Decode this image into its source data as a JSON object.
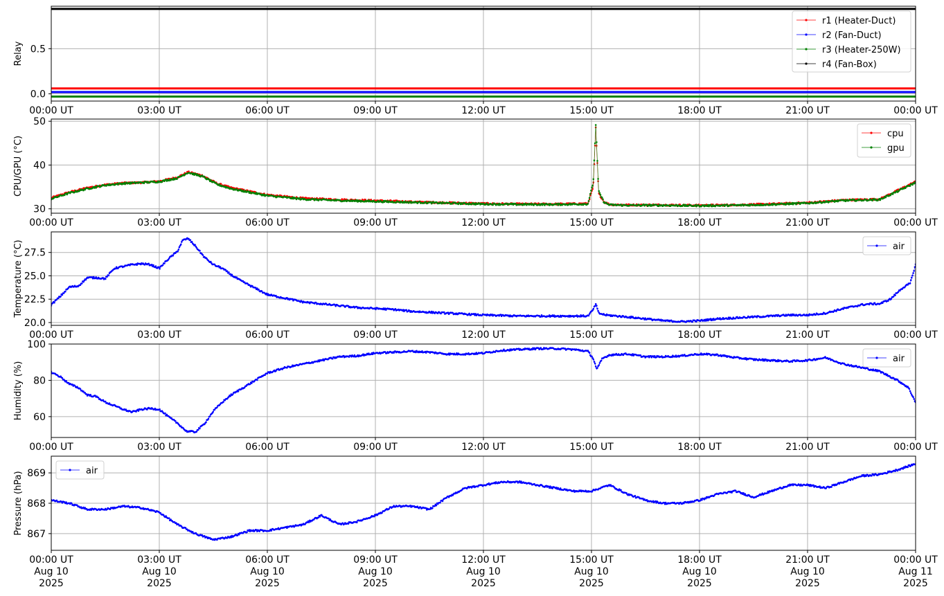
{
  "chart_data": [
    {
      "type": "line",
      "ylabel": "Relay",
      "xlabel": "",
      "xlim": [
        "00:00 UT",
        "00:00 UT"
      ],
      "x_ticks": [
        "00:00 UT",
        "03:00 UT",
        "06:00 UT",
        "09:00 UT",
        "12:00 UT",
        "15:00 UT",
        "18:00 UT",
        "21:00 UT",
        "00:00 UT"
      ],
      "ylim": [
        -0.08,
        0.97
      ],
      "y_ticks": [
        "0.0",
        "0.5"
      ],
      "y_tick_values": [
        0.0,
        0.5
      ],
      "grid": true,
      "legend_position": "top-right",
      "series": [
        {
          "name": "r1 (Heater-Duct)",
          "color": "#ff0000",
          "x": [
            0,
            24
          ],
          "y": [
            0.06,
            0.06
          ]
        },
        {
          "name": "r2 (Fan-Duct)",
          "color": "#0000ff",
          "x": [
            0,
            24
          ],
          "y": [
            0.02,
            0.02
          ]
        },
        {
          "name": "r3 (Heater-250W)",
          "color": "#008000",
          "x": [
            0,
            24
          ],
          "y": [
            -0.03,
            -0.03
          ]
        },
        {
          "name": "r4 (Fan-Box)",
          "color": "#000000",
          "x": [
            0,
            24
          ],
          "y": [
            0.94,
            0.94
          ]
        }
      ]
    },
    {
      "type": "scatter",
      "ylabel": "CPU/GPU (°C)",
      "xlabel": "",
      "x_ticks": [
        "00:00 UT",
        "03:00 UT",
        "06:00 UT",
        "09:00 UT",
        "12:00 UT",
        "15:00 UT",
        "18:00 UT",
        "21:00 UT",
        "00:00 UT"
      ],
      "ylim": [
        29.0,
        50.5
      ],
      "y_ticks": [
        "30",
        "40",
        "50"
      ],
      "y_tick_values": [
        30,
        40,
        50
      ],
      "grid": true,
      "legend_position": "top-right",
      "series": [
        {
          "name": "cpu",
          "color": "#ff0000",
          "x": [
            0,
            0.5,
            1,
            1.5,
            2,
            2.5,
            3,
            3.5,
            3.8,
            4.2,
            4.6,
            5,
            5.5,
            6,
            7,
            8,
            9,
            10,
            11,
            12,
            13,
            14,
            14.9,
            15.05,
            15.12,
            15.2,
            15.35,
            15.5,
            16,
            17,
            18,
            19,
            20,
            21,
            22,
            23,
            23.5,
            24
          ],
          "y": [
            32.5,
            33.8,
            34.8,
            35.5,
            35.9,
            36.0,
            36.3,
            37.2,
            38.4,
            37.6,
            35.8,
            34.8,
            34.0,
            33.2,
            32.4,
            32.1,
            31.9,
            31.6,
            31.4,
            31.2,
            31.1,
            31.1,
            31.2,
            35.0,
            48.5,
            33.5,
            31.6,
            31.0,
            30.9,
            30.9,
            30.8,
            30.9,
            31.1,
            31.4,
            32.0,
            32.2,
            34.2,
            36.2
          ]
        },
        {
          "name": "gpu",
          "color": "#008000",
          "x": [
            0,
            0.5,
            1,
            1.5,
            2,
            2.5,
            3,
            3.5,
            3.8,
            4.2,
            4.6,
            5,
            5.5,
            6,
            7,
            8,
            9,
            10,
            11,
            12,
            13,
            14,
            14.9,
            15.05,
            15.12,
            15.2,
            15.35,
            15.5,
            16,
            17,
            18,
            19,
            20,
            21,
            22,
            23,
            23.5,
            24
          ],
          "y": [
            32.3,
            33.6,
            34.6,
            35.4,
            35.8,
            36.0,
            36.2,
            37.0,
            38.3,
            37.4,
            35.6,
            34.6,
            33.8,
            33.0,
            32.2,
            31.9,
            31.7,
            31.5,
            31.3,
            31.1,
            31.0,
            31.0,
            31.1,
            36.0,
            49.2,
            34.0,
            31.5,
            30.9,
            30.8,
            30.8,
            30.7,
            30.8,
            31.0,
            31.3,
            31.9,
            32.1,
            34.0,
            36.0
          ]
        }
      ]
    },
    {
      "type": "scatter",
      "ylabel": "Temperature (°C)",
      "xlabel": "",
      "x_ticks": [
        "00:00 UT",
        "03:00 UT",
        "06:00 UT",
        "09:00 UT",
        "12:00 UT",
        "15:00 UT",
        "18:00 UT",
        "21:00 UT",
        "00:00 UT"
      ],
      "ylim": [
        19.7,
        29.7
      ],
      "y_ticks": [
        "20.0",
        "22.5",
        "25.0",
        "27.5"
      ],
      "y_tick_values": [
        20.0,
        22.5,
        25.0,
        27.5
      ],
      "grid": true,
      "legend_position": "top-right",
      "series": [
        {
          "name": "air",
          "color": "#0000ff",
          "x": [
            0,
            0.25,
            0.5,
            0.75,
            1,
            1.25,
            1.5,
            1.75,
            2,
            2.25,
            2.5,
            2.75,
            3,
            3.25,
            3.5,
            3.65,
            3.8,
            4.0,
            4.25,
            4.5,
            4.75,
            5,
            5.25,
            5.5,
            6,
            6.5,
            7,
            7.5,
            8,
            8.5,
            9,
            9.5,
            10,
            10.5,
            11,
            11.5,
            12,
            13,
            14,
            14.9,
            15.05,
            15.12,
            15.2,
            15.4,
            16,
            16.5,
            17,
            17.5,
            18,
            18.5,
            19,
            19.5,
            20,
            20.5,
            21,
            21.5,
            22,
            22.5,
            22.75,
            23,
            23.3,
            23.6,
            23.85,
            24
          ],
          "y": [
            21.9,
            22.8,
            23.8,
            23.9,
            24.8,
            24.8,
            24.7,
            25.8,
            26.0,
            26.2,
            26.3,
            26.2,
            25.8,
            26.8,
            27.6,
            28.8,
            29.0,
            28.2,
            27.0,
            26.2,
            25.8,
            25.1,
            24.5,
            24.0,
            23.0,
            22.6,
            22.2,
            22.0,
            21.8,
            21.6,
            21.5,
            21.4,
            21.2,
            21.1,
            21.0,
            20.9,
            20.8,
            20.7,
            20.7,
            20.7,
            21.4,
            22.0,
            21.0,
            20.8,
            20.6,
            20.4,
            20.2,
            20.1,
            20.2,
            20.4,
            20.5,
            20.6,
            20.7,
            20.8,
            20.8,
            21.0,
            21.5,
            21.9,
            22.0,
            22.0,
            22.5,
            23.6,
            24.2,
            26.2
          ]
        }
      ]
    },
    {
      "type": "scatter",
      "ylabel": "Humidity (%)",
      "xlabel": "",
      "x_ticks": [
        "00:00 UT",
        "03:00 UT",
        "06:00 UT",
        "09:00 UT",
        "12:00 UT",
        "15:00 UT",
        "18:00 UT",
        "21:00 UT",
        "00:00 UT"
      ],
      "ylim": [
        48.5,
        100.0
      ],
      "y_ticks": [
        "60",
        "80",
        "100"
      ],
      "y_tick_values": [
        60,
        80,
        100
      ],
      "grid": true,
      "legend_position": "top-right",
      "series": [
        {
          "name": "air",
          "color": "#0000ff",
          "x": [
            0,
            0.25,
            0.5,
            0.75,
            1,
            1.25,
            1.5,
            1.75,
            2,
            2.25,
            2.5,
            2.75,
            3,
            3.25,
            3.5,
            3.75,
            4.0,
            4.25,
            4.5,
            4.75,
            5,
            5.5,
            6,
            6.5,
            7,
            7.5,
            8,
            8.5,
            9,
            9.5,
            10,
            10.5,
            11,
            11.5,
            12,
            12.5,
            13,
            13.5,
            14,
            14.5,
            14.9,
            15.05,
            15.15,
            15.3,
            15.5,
            16,
            16.5,
            17,
            17.5,
            18,
            18.5,
            19,
            19.5,
            20,
            20.5,
            21,
            21.5,
            22,
            22.5,
            23,
            23.5,
            23.8,
            24
          ],
          "y": [
            84.5,
            82.0,
            78.0,
            76.0,
            72.0,
            71.0,
            68.0,
            66.0,
            64.0,
            62.5,
            64.0,
            64.5,
            64.0,
            60.0,
            56.5,
            52.0,
            51.5,
            56.0,
            63.0,
            68.0,
            72.0,
            78.0,
            84.0,
            87.0,
            89.0,
            91.0,
            93.0,
            93.5,
            95.0,
            95.5,
            96.0,
            95.5,
            94.5,
            94.5,
            95.0,
            96.5,
            97.0,
            97.5,
            97.5,
            97.0,
            96.0,
            92.0,
            86.0,
            92.0,
            94.0,
            94.5,
            93.0,
            93.0,
            93.5,
            94.5,
            94.0,
            92.5,
            91.5,
            91.0,
            90.5,
            91.0,
            92.5,
            89.0,
            87.0,
            85.0,
            80.0,
            76.0,
            68.0
          ]
        }
      ]
    },
    {
      "type": "scatter",
      "ylabel": "Pressure (hPa)",
      "xlabel": "",
      "x_ticks": [
        "00:00 UT\nAug 10\n2025",
        "03:00 UT\nAug 10\n2025",
        "06:00 UT\nAug 10\n2025",
        "09:00 UT\nAug 10\n2025",
        "12:00 UT\nAug 10\n2025",
        "15:00 UT\nAug 10\n2025",
        "18:00 UT\nAug 10\n2025",
        "21:00 UT\nAug 10\n2025",
        "00:00 UT\nAug 11\n2025"
      ],
      "ylim": [
        866.45,
        869.55
      ],
      "y_ticks": [
        "867",
        "868",
        "869"
      ],
      "y_tick_values": [
        867,
        868,
        869
      ],
      "grid": true,
      "legend_position": "top-left",
      "series": [
        {
          "name": "air",
          "color": "#0000ff",
          "x": [
            0,
            0.5,
            1,
            1.5,
            2,
            2.5,
            3,
            3.5,
            4,
            4.5,
            5,
            5.5,
            6,
            6.5,
            7,
            7.5,
            8,
            8.5,
            9,
            9.5,
            10,
            10.5,
            11,
            11.5,
            12,
            12.5,
            13,
            13.5,
            14,
            14.5,
            15,
            15.5,
            16,
            16.5,
            17,
            17.5,
            18,
            18.5,
            19,
            19.5,
            20,
            20.5,
            21,
            21.5,
            22,
            22.5,
            23,
            23.5,
            24
          ],
          "y": [
            868.1,
            868.0,
            867.8,
            867.8,
            867.9,
            867.85,
            867.7,
            867.3,
            867.0,
            866.8,
            866.9,
            867.1,
            867.1,
            867.2,
            867.3,
            867.6,
            867.3,
            867.4,
            867.6,
            867.9,
            867.9,
            867.8,
            868.2,
            868.5,
            868.6,
            868.7,
            868.7,
            868.6,
            868.5,
            868.4,
            868.4,
            868.6,
            868.3,
            868.1,
            868.0,
            868.0,
            868.1,
            868.3,
            868.4,
            868.2,
            868.4,
            868.6,
            868.6,
            868.5,
            868.7,
            868.9,
            868.95,
            869.1,
            869.3
          ]
        }
      ]
    }
  ]
}
